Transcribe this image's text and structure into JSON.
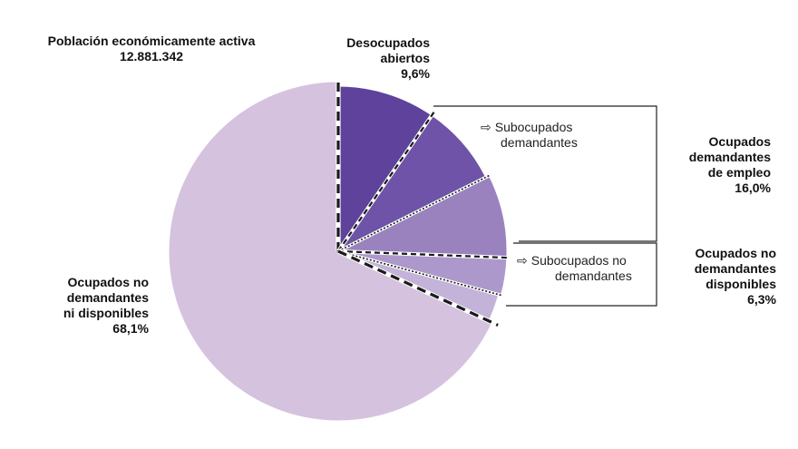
{
  "chart_data": {
    "type": "pie",
    "title": "Población económicamente activa",
    "total": "12.881.342",
    "slices": [
      {
        "name": "Desocupados abiertos",
        "value": 9.6,
        "color": "#5e429c"
      },
      {
        "name": "Ocupados demandantes de empleo (parte 1)",
        "value": 8.0,
        "color": "#6e53a8"
      },
      {
        "name": "Ocupados demandantes de empleo (parte 2)",
        "value": 8.0,
        "color": "#9a82bf"
      },
      {
        "name": "Ocupados no demandantes disponibles (parte 1)",
        "value": 3.6,
        "color": "#ad98cb"
      },
      {
        "name": "Ocupados no demandantes disponibles (parte 2)",
        "value": 2.7,
        "color": "#c4b3d9"
      },
      {
        "name": "Ocupados no demandantes ni disponibles",
        "value": 68.1,
        "color": "#d4c2df"
      }
    ],
    "groups": [
      {
        "label": "Ocupados demandantes de empleo",
        "value": 16.0,
        "sub": "Subocupados demandantes"
      },
      {
        "label": "Ocupados no demandantes disponibles",
        "value": 6.3,
        "sub": "Subocupados no demandantes"
      }
    ]
  },
  "labels": {
    "title": "Población económicamente activa",
    "total": "12.881.342",
    "desocupados_1": "Desocupados",
    "desocupados_2": "abiertos",
    "desocupados_pct": "9,6%",
    "ode_1": "Ocupados",
    "ode_2": "demandantes",
    "ode_3": "de empleo",
    "ode_pct": "16,0%",
    "ondd_1": "Ocupados no",
    "ondd_2": "demandantes",
    "ondd_3": "disponibles",
    "ondd_pct": "6,3%",
    "ond_1": "Ocupados no",
    "ond_2": "demandantes",
    "ond_3": "ni disponibles",
    "ond_pct": "68,1%",
    "sub_dem_1": "Subocupados",
    "sub_dem_2": "demandantes",
    "sub_nodem_1": "Subocupados no",
    "sub_nodem_2": "demandantes",
    "arrow_glyph": "⇨"
  }
}
